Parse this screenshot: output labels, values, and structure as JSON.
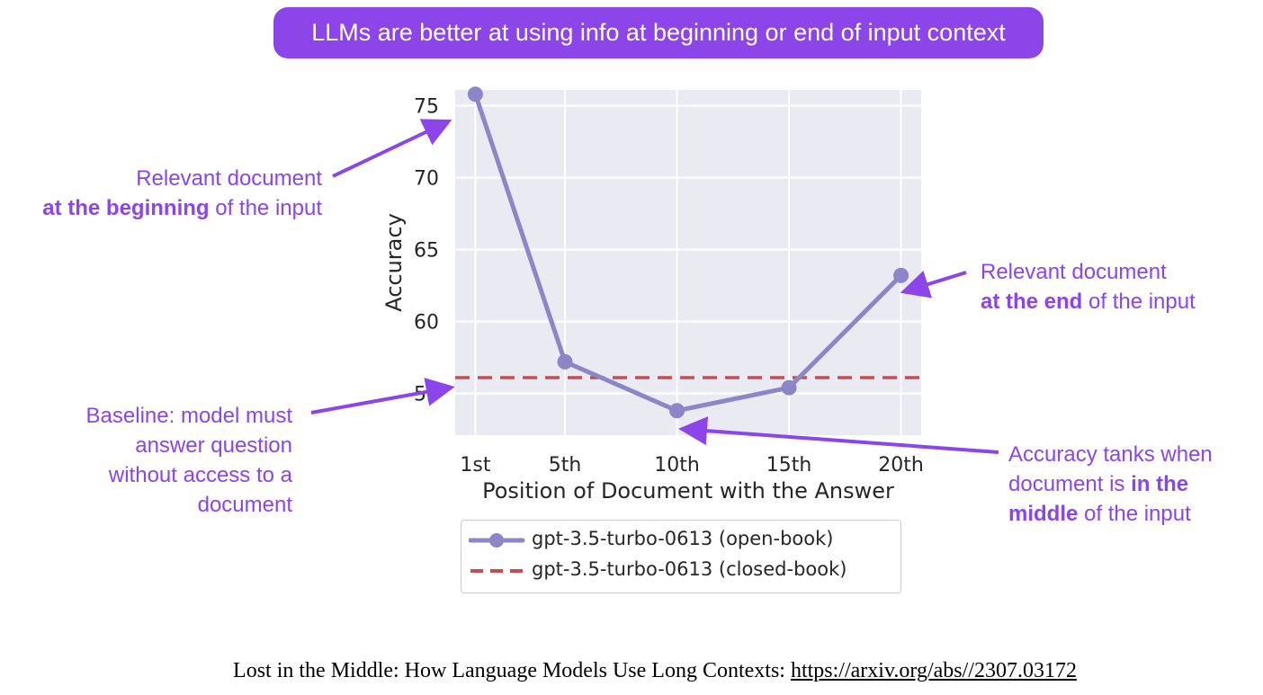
{
  "banner": {
    "text": "LLMs are better at using info at beginning or end of input context"
  },
  "annotations": {
    "beginning": {
      "line1": "Relevant document",
      "bold": "at the beginning",
      "rest": " of the input"
    },
    "end": {
      "line1": "Relevant document",
      "bold": "at the end",
      "rest": " of the input"
    },
    "baseline": {
      "line1": "Baseline: model must",
      "line2": "answer question",
      "line3": "without access to a",
      "line4": "document"
    },
    "middle": {
      "line1": "Accuracy tanks when",
      "line2_pre": "document is ",
      "line2_bold": "in the",
      "line3_bold": "middle",
      "line3_rest": " of the input"
    }
  },
  "footer": {
    "text": "Lost in the Middle: How Language Models Use Long Contexts: ",
    "link": "https://arxiv.org/abs//2307.03172"
  },
  "colors": {
    "accent": "#8c45e8",
    "series_open": "#8c85c8",
    "series_closed": "#c44e52",
    "plot_bg": "#eaeaf2"
  },
  "chart_data": {
    "type": "line",
    "xlabel": "Position of Document with the Answer",
    "ylabel": "Accuracy",
    "x": [
      1,
      5,
      10,
      15,
      20
    ],
    "x_tick_labels": [
      "1st",
      "5th",
      "10th",
      "15th",
      "20th"
    ],
    "y_ticks": [
      55,
      60,
      65,
      70,
      75
    ],
    "xlim": [
      0.1,
      20.9
    ],
    "ylim": [
      52.1,
      76.1
    ],
    "grid": true,
    "legend_position": "below",
    "series": [
      {
        "name": "gpt-3.5-turbo-0613 (open-book)",
        "style": "line-marker",
        "values": [
          75.8,
          57.2,
          53.8,
          55.4,
          63.2
        ]
      },
      {
        "name": "gpt-3.5-turbo-0613 (closed-book)",
        "style": "dashed",
        "values": [
          56.1,
          56.1,
          56.1,
          56.1,
          56.1
        ]
      }
    ]
  }
}
